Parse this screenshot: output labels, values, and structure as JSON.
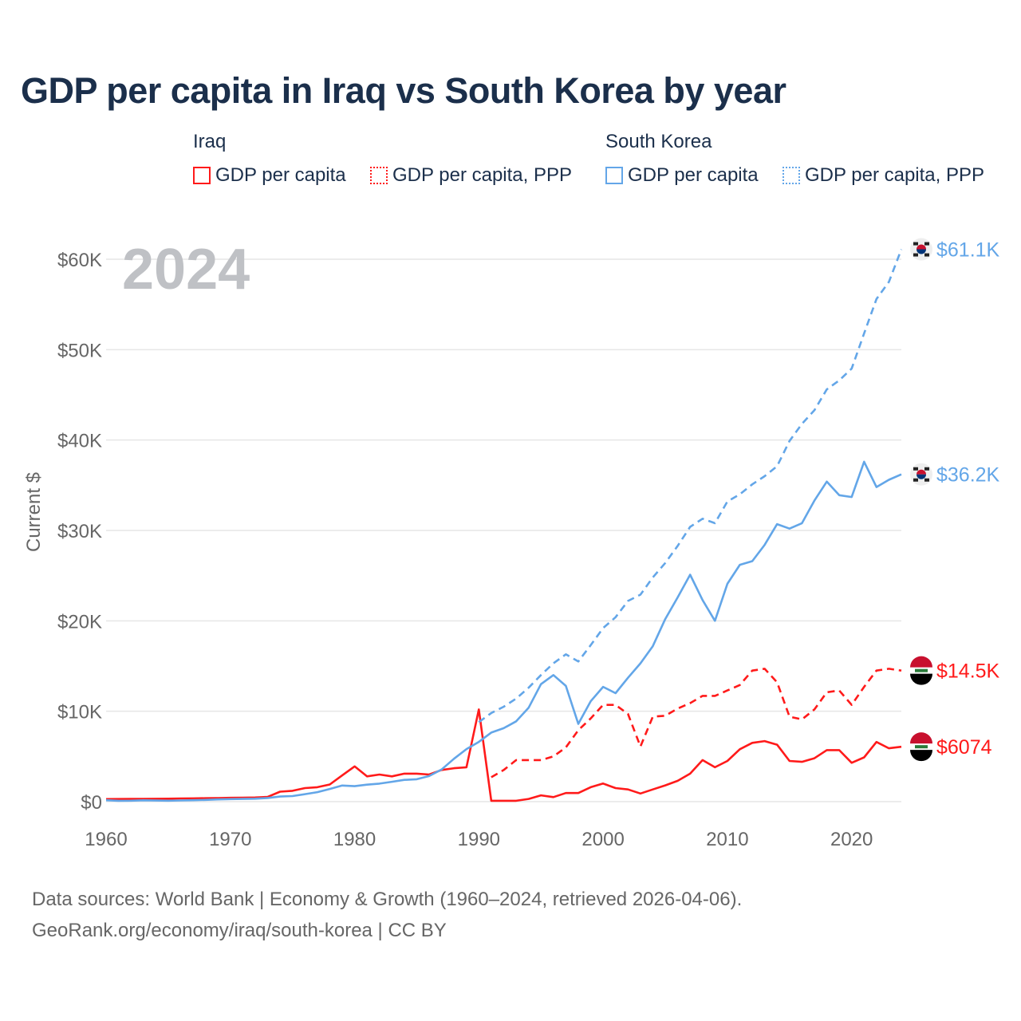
{
  "chart_data": {
    "type": "line",
    "title": "GDP per capita in Iraq vs South Korea by year",
    "ylabel": "Current $",
    "xlabel": "",
    "year_watermark": "2024",
    "xlim": [
      1960,
      2024
    ],
    "ylim": [
      0,
      62000
    ],
    "x_ticks": [
      1960,
      1970,
      1980,
      1990,
      2000,
      2010,
      2020
    ],
    "x_tick_labels": [
      "1960",
      "1970",
      "1980",
      "1990",
      "2000",
      "2010",
      "2020"
    ],
    "y_ticks": [
      0,
      10000,
      20000,
      30000,
      40000,
      50000,
      60000
    ],
    "y_tick_labels": [
      "$0",
      "$10K",
      "$20K",
      "$30K",
      "$40K",
      "$50K",
      "$60K"
    ],
    "grid": true,
    "legend": {
      "placement": "top",
      "groups": [
        {
          "name": "Iraq",
          "items": [
            "GDP per capita",
            "GDP per capita, PPP"
          ]
        },
        {
          "name": "South Korea",
          "items": [
            "GDP per capita",
            "GDP per capita, PPP"
          ]
        }
      ]
    },
    "series": [
      {
        "name": "Iraq GDP per capita",
        "country": "Iraq",
        "style": "solid",
        "color": "#ff1a1a",
        "start_year": 1960,
        "end_label": "$6074",
        "values": [
          280,
          290,
          300,
          310,
          320,
          330,
          350,
          360,
          380,
          400,
          420,
          430,
          460,
          520,
          1100,
          1200,
          1500,
          1600,
          1900,
          2900,
          3900,
          2800,
          3000,
          2800,
          3100,
          3100,
          3000,
          3500,
          3700,
          3800,
          10200,
          100,
          100,
          100,
          300,
          700,
          500,
          950,
          950,
          1600,
          2000,
          1500,
          1350,
          900,
          1350,
          1800,
          2300,
          3100,
          4600,
          3800,
          4500,
          5800,
          6500,
          6700,
          6300,
          4500,
          4400,
          4800,
          5700,
          5700,
          4300,
          4900,
          6600,
          5900,
          6074
        ]
      },
      {
        "name": "Iraq GDP per capita, PPP",
        "country": "Iraq",
        "style": "dashed",
        "color": "#ff1a1a",
        "start_year": 1991,
        "end_label": "$14.5K",
        "values": [
          2700,
          3500,
          4600,
          4600,
          4600,
          5000,
          6000,
          7900,
          9200,
          10700,
          10700,
          9700,
          6100,
          9400,
          9500,
          10300,
          10900,
          11700,
          11700,
          12300,
          12900,
          14500,
          14700,
          13200,
          9400,
          9100,
          10200,
          12100,
          12300,
          10700,
          12700,
          14500,
          14700,
          14500
        ]
      },
      {
        "name": "South Korea GDP per capita",
        "country": "South Korea",
        "style": "solid",
        "color": "#63a6e8",
        "start_year": 1960,
        "end_label": "$36.2K",
        "values": [
          158,
          94,
          106,
          146,
          124,
          109,
          133,
          161,
          198,
          243,
          279,
          301,
          324,
          406,
          564,
          615,
          831,
          1052,
          1406,
          1783,
          1715,
          1883,
          1992,
          2199,
          2413,
          2482,
          2835,
          3555,
          4749,
          5817,
          6610,
          7637,
          8127,
          8885,
          10385,
          13000,
          14000,
          12800,
          8600,
          11100,
          12700,
          12000,
          13700,
          15300,
          17200,
          20200,
          22600,
          25100,
          22300,
          20000,
          24100,
          26200,
          26600,
          28400,
          30700,
          30200,
          30800,
          33300,
          35400,
          33900,
          33700,
          37600,
          34800,
          35600,
          36200
        ]
      },
      {
        "name": "South Korea GDP per capita, PPP",
        "country": "South Korea",
        "style": "dashed",
        "color": "#63a6e8",
        "start_year": 1990,
        "end_label": "$61.1K",
        "values": [
          8800,
          9800,
          10500,
          11400,
          12600,
          14000,
          15300,
          16300,
          15500,
          17300,
          19200,
          20400,
          22200,
          22900,
          24800,
          26400,
          28300,
          30400,
          31300,
          30800,
          33200,
          34000,
          35100,
          36000,
          37100,
          39900,
          41800,
          43300,
          45600,
          46600,
          47900,
          51800,
          55600,
          57500,
          61100
        ]
      }
    ]
  },
  "footer": {
    "line1": "Data sources: World Bank | Economy & Growth (1960–2024, retrieved 2026-04-06).",
    "line2": "GeoRank.org/economy/iraq/south-korea | CC BY"
  }
}
